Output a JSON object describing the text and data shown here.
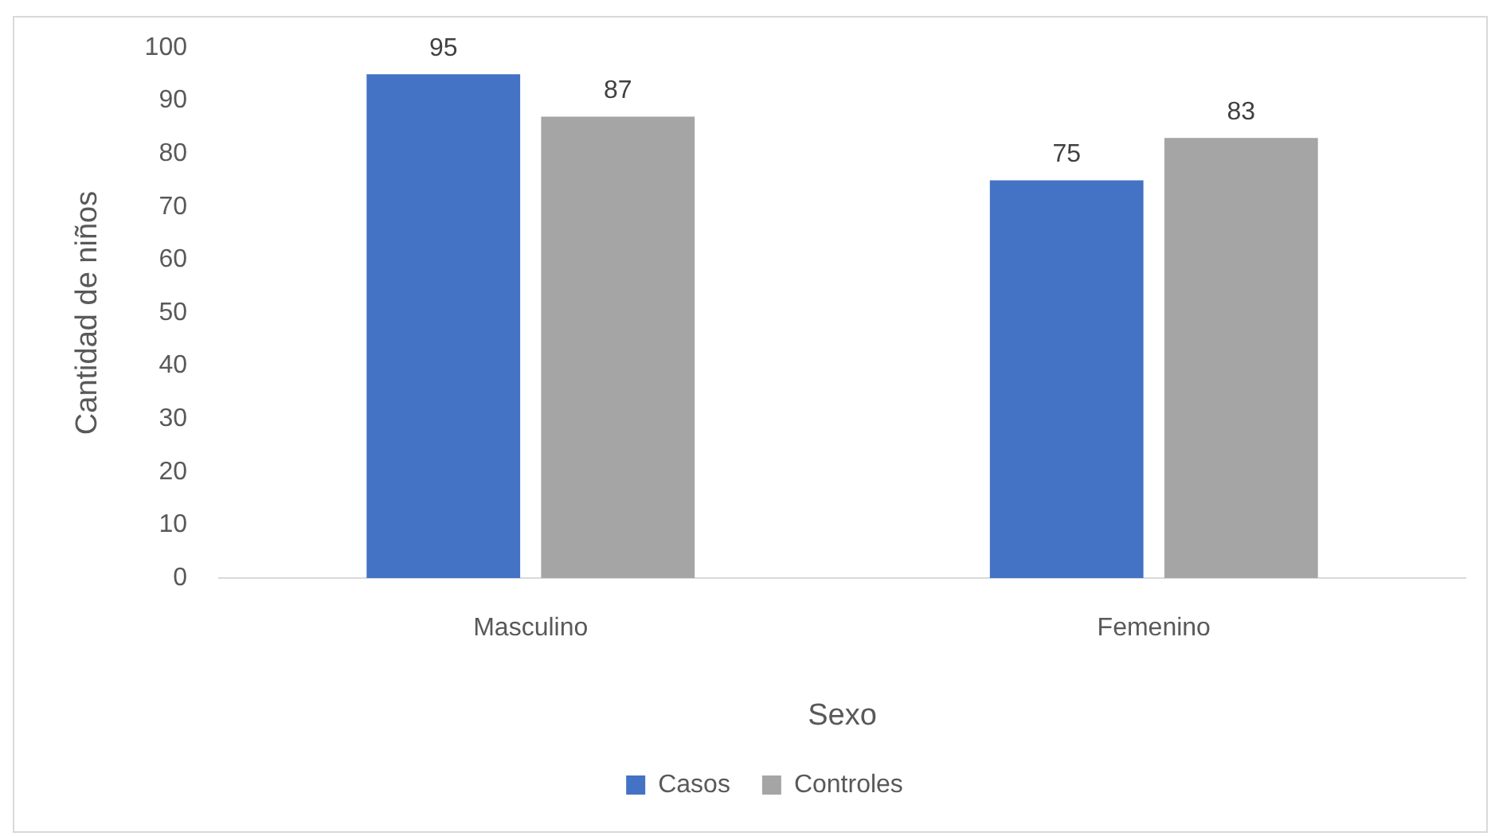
{
  "chart_data": {
    "type": "bar",
    "xlabel": "Sexo",
    "ylabel": "Cantidad de niños",
    "categories": [
      "Masculino",
      "Femenino"
    ],
    "series": [
      {
        "name": "Casos",
        "color": "#4472c4",
        "values": [
          95,
          75
        ]
      },
      {
        "name": "Controles",
        "color": "#a5a5a5",
        "values": [
          87,
          83
        ]
      }
    ],
    "ylim": [
      0,
      100
    ],
    "yticks": [
      0,
      10,
      20,
      30,
      40,
      50,
      60,
      70,
      80,
      90,
      100
    ],
    "grid": false,
    "legend": "bottom",
    "data_labels": true
  }
}
